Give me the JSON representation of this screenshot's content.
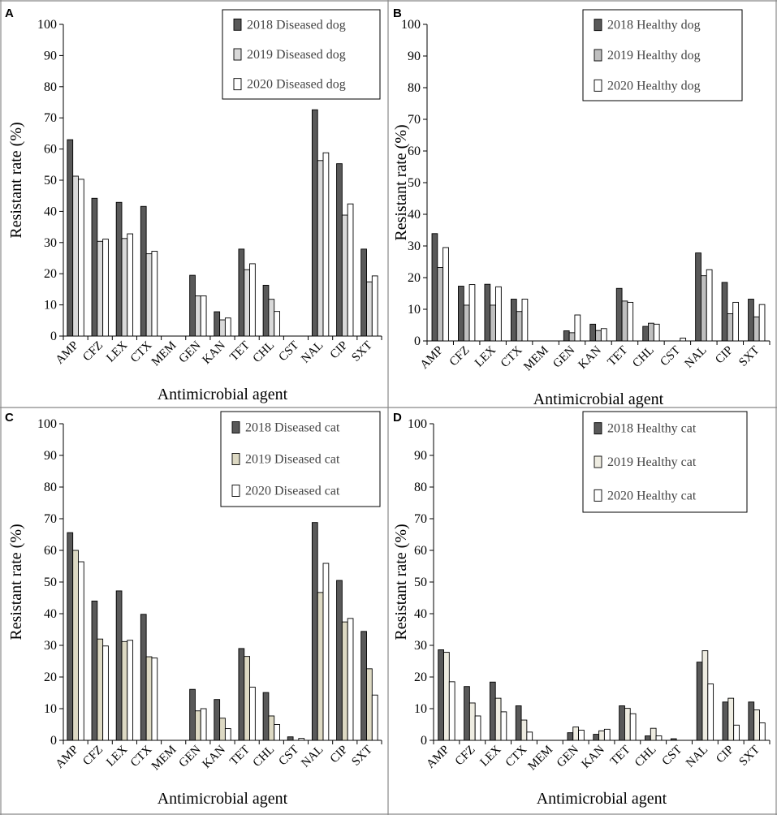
{
  "chart_data": [
    {
      "panel": "A",
      "type": "bar",
      "xlabel": "Antimicrobial agent",
      "ylabel": "Resistant rate (%)",
      "ylim": [
        0,
        100
      ],
      "yticks": [
        "0",
        "10",
        "20",
        "30",
        "40",
        "50",
        "60",
        "70",
        "80",
        "90",
        "100"
      ],
      "categories": [
        "AMP",
        "CFZ",
        "LEX",
        "CTX",
        "MEM",
        "GEN",
        "KAN",
        "TET",
        "CHL",
        "CST",
        "NAL",
        "CIP",
        "SXT"
      ],
      "legend_position": "top-right",
      "series": [
        {
          "name": "2018 Diseased dog",
          "color": "#595959",
          "values": [
            63,
            44.2,
            42.9,
            41.6,
            0,
            19.5,
            7.8,
            27.9,
            16.3,
            0,
            72.6,
            55.3,
            27.9
          ]
        },
        {
          "name": "2019 Diseased dog",
          "color": "#d9d9d9",
          "values": [
            51.3,
            30.4,
            31.3,
            26.4,
            0,
            12.9,
            5.2,
            21.3,
            11.8,
            0,
            56.3,
            38.8,
            17.4
          ]
        },
        {
          "name": "2020 Diseased dog",
          "color": "#ffffff",
          "values": [
            50.3,
            31.1,
            32.8,
            27.2,
            0,
            12.9,
            5.8,
            23.2,
            7.9,
            0,
            58.8,
            42.4,
            19.3
          ]
        }
      ]
    },
    {
      "panel": "B",
      "type": "bar",
      "xlabel": "Antimicrobial agent",
      "ylabel": "Resistant rate (%)",
      "ylim": [
        0,
        100
      ],
      "yticks": [
        "0",
        "10",
        "20",
        "30",
        "40",
        "50",
        "60",
        "70",
        "80",
        "90",
        "100"
      ],
      "categories": [
        "AMP",
        "CFZ",
        "LEX",
        "CTX",
        "MEM",
        "GEN",
        "KAN",
        "TET",
        "CHL",
        "CST",
        "NAL",
        "CIP",
        "SXT"
      ],
      "legend_position": "top-right",
      "series": [
        {
          "name": "2018 Healthy dog",
          "color": "#595959",
          "values": [
            33.9,
            17.3,
            17.9,
            13.2,
            0,
            3.2,
            5.3,
            16.6,
            4.6,
            0,
            27.8,
            18.5,
            13.2
          ]
        },
        {
          "name": "2019 Healthy dog",
          "color": "#bfbfbf",
          "values": [
            23.2,
            11.3,
            11.3,
            9.3,
            0,
            2.6,
            3.3,
            12.6,
            5.6,
            0,
            20.6,
            8.6,
            7.6
          ]
        },
        {
          "name": "2020 Healthy dog",
          "color": "#ffffff",
          "values": [
            29.5,
            17.8,
            17.1,
            13.2,
            0,
            8.2,
            3.9,
            12.2,
            5.3,
            0.9,
            22.5,
            12.2,
            11.5
          ]
        }
      ]
    },
    {
      "panel": "C",
      "type": "bar",
      "xlabel": "Antimicrobial agent",
      "ylabel": "Resistant rate (%)",
      "ylim": [
        0,
        100
      ],
      "yticks": [
        "0",
        "10",
        "20",
        "30",
        "40",
        "50",
        "60",
        "70",
        "80",
        "90",
        "100"
      ],
      "categories": [
        "AMP",
        "CFZ",
        "LEX",
        "CTX",
        "MEM",
        "GEN",
        "KAN",
        "TET",
        "CHL",
        "CST",
        "NAL",
        "CIP",
        "SXT"
      ],
      "legend_position": "top-right",
      "series": [
        {
          "name": "2018 Diseased cat",
          "color": "#595959",
          "values": [
            65.6,
            44,
            47.2,
            39.8,
            0,
            16.1,
            12.9,
            29,
            15.1,
            1.1,
            68.8,
            50.5,
            34.4
          ]
        },
        {
          "name": "2019 Diseased cat",
          "color": "#ddd9c3",
          "values": [
            60,
            32,
            31.2,
            26.4,
            0,
            9.3,
            7,
            26.5,
            7.7,
            0,
            46.7,
            37.4,
            22.6
          ]
        },
        {
          "name": "2020 Diseased cat",
          "color": "#ffffff",
          "values": [
            56.4,
            29.8,
            31.6,
            26,
            0,
            10,
            3.7,
            16.8,
            5,
            0.6,
            55.9,
            38.5,
            14.3
          ]
        }
      ]
    },
    {
      "panel": "D",
      "type": "bar",
      "xlabel": "Antimicrobial agent",
      "ylabel": "Resistant rate (%)",
      "ylim": [
        0,
        100
      ],
      "yticks": [
        "0",
        "10",
        "20",
        "30",
        "40",
        "50",
        "60",
        "70",
        "80",
        "90",
        "100"
      ],
      "categories": [
        "AMP",
        "CFZ",
        "LEX",
        "CTX",
        "MEM",
        "GEN",
        "KAN",
        "TET",
        "CHL",
        "CST",
        "NAL",
        "CIP",
        "SXT"
      ],
      "legend_position": "top-right",
      "series": [
        {
          "name": "2018 Healthy cat",
          "color": "#595959",
          "values": [
            28.6,
            17,
            18.4,
            10.9,
            0,
            2.4,
            1.9,
            10.9,
            1.4,
            0.5,
            24.7,
            12.1,
            12.1
          ]
        },
        {
          "name": "2019 Healthy cat",
          "color": "#eeece1",
          "values": [
            27.8,
            11.8,
            13.3,
            6.4,
            0,
            4.2,
            3,
            10.1,
            3.8,
            0,
            28.3,
            13.3,
            9.6
          ]
        },
        {
          "name": "2020 Healthy cat",
          "color": "#ffffff",
          "values": [
            18.5,
            7.7,
            9,
            2.6,
            0,
            3.2,
            3.5,
            8.4,
            1.4,
            0,
            17.8,
            4.8,
            5.5
          ]
        }
      ]
    }
  ]
}
